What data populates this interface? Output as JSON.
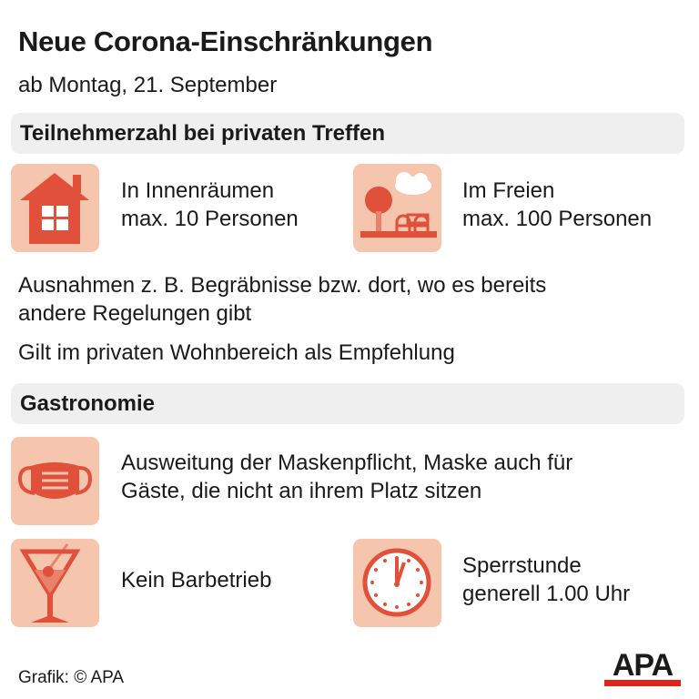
{
  "header": {
    "title": "Neue Corona-Einschränkungen",
    "subtitle": "ab Montag, 21. September"
  },
  "colors": {
    "accent": "#e0503a",
    "icon_bg": "#f6c5ae",
    "section_bg": "#efefef"
  },
  "section1": {
    "heading": "Teilnehmerzahl bei privaten Treffen",
    "items": [
      {
        "icon": "house-icon",
        "line1": "In Innenräumen",
        "line2": "max. 10 Personen"
      },
      {
        "icon": "park-icon",
        "line1": "Im Freien",
        "line2": "max. 100 Personen"
      }
    ],
    "note1_line1": "Ausnahmen z. B. Begräbnisse bzw. dort, wo es bereits",
    "note1_line2": "andere Regelungen gibt",
    "note2": "Gilt im privaten Wohnbereich als Empfehlung"
  },
  "section2": {
    "heading": "Gastronomie",
    "mask": {
      "icon": "mask-icon",
      "line1": "Ausweitung der Maskenpflicht, Maske auch für",
      "line2": "Gäste, die nicht an ihrem Platz sitzen"
    },
    "bar": {
      "icon": "cocktail-icon",
      "text": "Kein Barbetrieb"
    },
    "curfew": {
      "icon": "clock-icon",
      "line1": "Sperrstunde",
      "line2": "generell 1.00 Uhr"
    }
  },
  "footer": {
    "credit": "Grafik: © APA",
    "logo": "APA"
  }
}
